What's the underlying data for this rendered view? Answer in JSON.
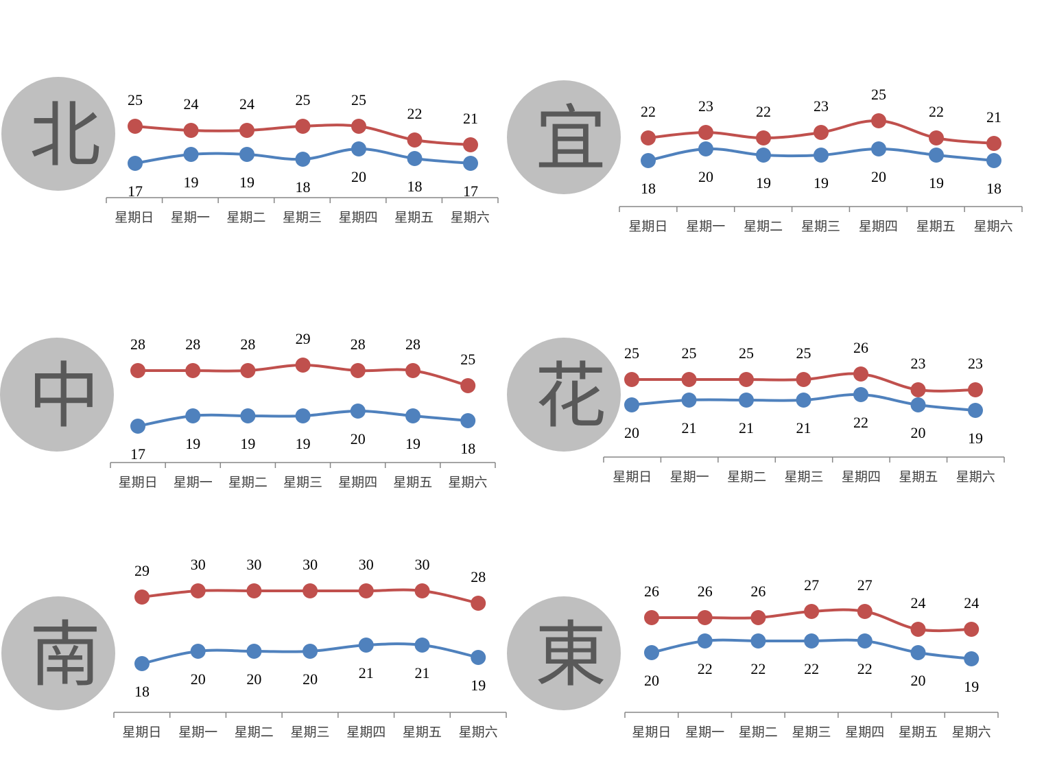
{
  "colors": {
    "high": "#c0504d",
    "low": "#4f81bd",
    "circle": "#bfbfbf",
    "region_text": "#595959",
    "axis": "#868686"
  },
  "chart_data": [
    {
      "type": "line",
      "region": "北",
      "categories": [
        "星期日",
        "星期一",
        "星期二",
        "星期三",
        "星期四",
        "星期五",
        "星期六"
      ],
      "series": [
        {
          "values": [
            25,
            24,
            24,
            25,
            25,
            22,
            21
          ]
        },
        {
          "values": [
            17,
            19,
            19,
            18,
            20,
            18,
            17
          ]
        }
      ]
    },
    {
      "type": "line",
      "region": "宜",
      "categories": [
        "星期日",
        "星期一",
        "星期二",
        "星期三",
        "星期四",
        "星期五",
        "星期六"
      ],
      "series": [
        {
          "values": [
            22,
            23,
            22,
            23,
            25,
            22,
            21
          ]
        },
        {
          "values": [
            18,
            20,
            19,
            19,
            20,
            19,
            18
          ]
        }
      ]
    },
    {
      "type": "line",
      "region": "中",
      "categories": [
        "星期日",
        "星期一",
        "星期二",
        "星期三",
        "星期四",
        "星期五",
        "星期六"
      ],
      "series": [
        {
          "values": [
            28,
            28,
            28,
            29,
            28,
            28,
            25
          ]
        },
        {
          "values": [
            17,
            19,
            19,
            19,
            20,
            19,
            18
          ]
        }
      ]
    },
    {
      "type": "line",
      "region": "花",
      "categories": [
        "星期日",
        "星期一",
        "星期二",
        "星期三",
        "星期四",
        "星期五",
        "星期六"
      ],
      "series": [
        {
          "values": [
            25,
            25,
            25,
            25,
            26,
            23,
            23
          ]
        },
        {
          "values": [
            20,
            21,
            21,
            21,
            22,
            20,
            19
          ]
        }
      ]
    },
    {
      "type": "line",
      "region": "南",
      "categories": [
        "星期日",
        "星期一",
        "星期二",
        "星期三",
        "星期四",
        "星期五",
        "星期六"
      ],
      "series": [
        {
          "values": [
            29,
            30,
            30,
            30,
            30,
            30,
            28
          ]
        },
        {
          "values": [
            18,
            20,
            20,
            20,
            21,
            21,
            19
          ]
        }
      ]
    },
    {
      "type": "line",
      "region": "東",
      "categories": [
        "星期日",
        "星期一",
        "星期二",
        "星期三",
        "星期四",
        "星期五",
        "星期六"
      ],
      "series": [
        {
          "values": [
            26,
            26,
            26,
            27,
            27,
            24,
            24
          ]
        },
        {
          "values": [
            20,
            22,
            22,
            22,
            22,
            20,
            19
          ]
        }
      ]
    }
  ]
}
